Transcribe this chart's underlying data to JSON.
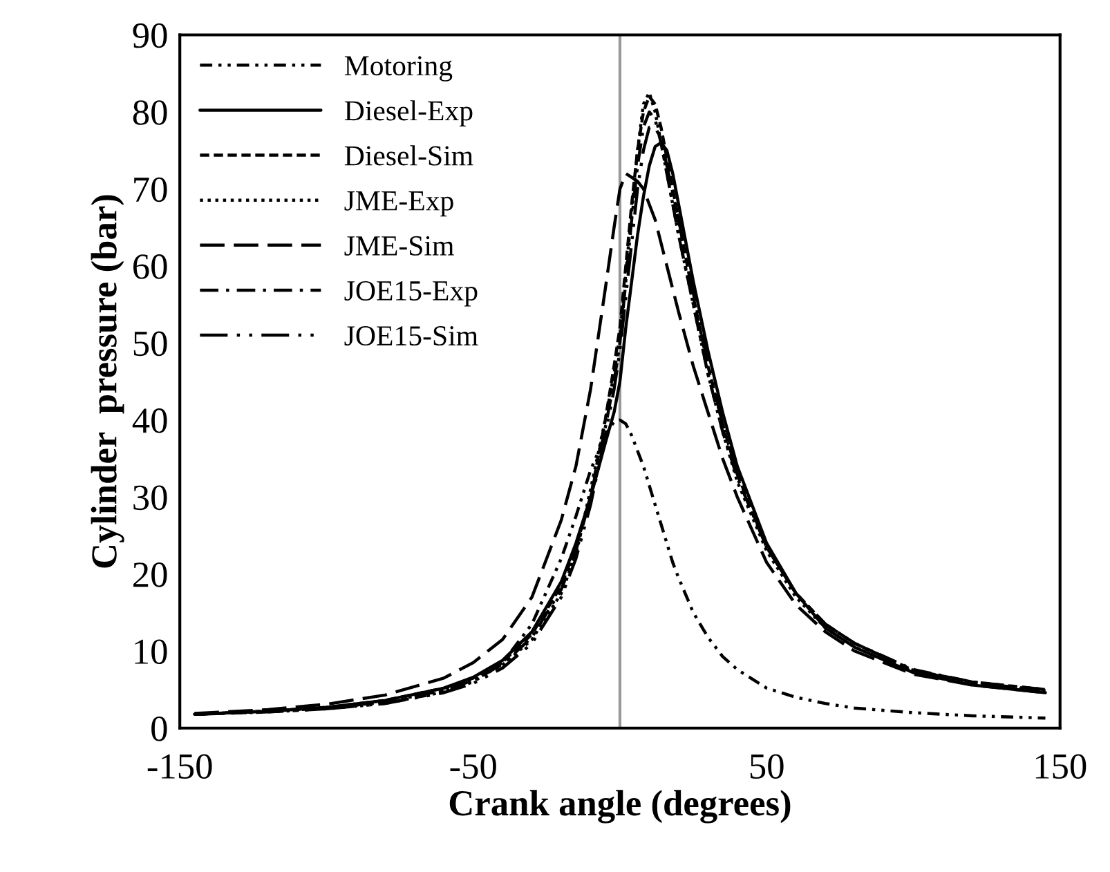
{
  "chart_data": {
    "type": "line",
    "xlabel": "Crank angle (degrees)",
    "ylabel": "Cylinder  pressure (bar)",
    "x": [
      -145,
      -120,
      -100,
      -80,
      -60,
      -50,
      -40,
      -30,
      -20,
      -15,
      -10,
      -5,
      -2,
      0,
      2,
      4,
      6,
      8,
      10,
      12,
      14,
      16,
      18,
      20,
      25,
      30,
      35,
      40,
      50,
      60,
      70,
      80,
      100,
      120,
      145
    ],
    "series": [
      {
        "name": "Motoring",
        "color": "#000000",
        "line_style": "dashdotdot",
        "values": [
          1.8,
          2.1,
          2.5,
          3.2,
          4.7,
          6,
          8.5,
          13.5,
          22,
          27.5,
          33.5,
          38,
          39.8,
          40,
          39.5,
          38,
          36,
          34,
          31.5,
          29,
          26.5,
          24,
          21.5,
          19.5,
          15,
          11.8,
          9.3,
          7.6,
          5.2,
          4,
          3.2,
          2.6,
          2,
          1.6,
          1.3
        ]
      },
      {
        "name": "Diesel-Exp",
        "color": "#000000",
        "line_style": "solid",
        "values": [
          1.8,
          2.2,
          2.7,
          3.6,
          5.2,
          6.6,
          8.8,
          12.5,
          19,
          24,
          30,
          37,
          41,
          45,
          52,
          58,
          64,
          69,
          73,
          75.5,
          76,
          75,
          72,
          68,
          58,
          49,
          41,
          34,
          24,
          17.5,
          13,
          10.5,
          7.2,
          5.6,
          4.6
        ]
      },
      {
        "name": "Diesel-Sim",
        "color": "#000000",
        "line_style": "dashed",
        "values": [
          1.8,
          2.2,
          2.7,
          3.6,
          5.2,
          6.5,
          8.6,
          12.2,
          18.5,
          23.5,
          30,
          40,
          47,
          52,
          60,
          68,
          75,
          80,
          82,
          81,
          78,
          74,
          70,
          66,
          56,
          47,
          39.5,
          33,
          23.5,
          17.5,
          13.5,
          11,
          7.5,
          6,
          5
        ]
      },
      {
        "name": "JME-Exp",
        "color": "#000000",
        "line_style": "dotted",
        "values": [
          1.8,
          2.2,
          2.6,
          3.4,
          4.9,
          6.2,
          8.2,
          11.5,
          17.5,
          22.5,
          31,
          40,
          46,
          51,
          59,
          67,
          75,
          81,
          82.5,
          80,
          76,
          72,
          68,
          64,
          55,
          46,
          38.5,
          32,
          23,
          17,
          13,
          10.5,
          7.3,
          5.8,
          4.8
        ]
      },
      {
        "name": "JME-Sim",
        "color": "#000000",
        "line_style": "longdash",
        "values": [
          1.9,
          2.4,
          3.1,
          4.3,
          6.5,
          8.5,
          11.5,
          17,
          27,
          34,
          44,
          57,
          65,
          70,
          72,
          71.5,
          71,
          70,
          68,
          66,
          63,
          60,
          57,
          54,
          47,
          41,
          35,
          30,
          21.5,
          16,
          12.5,
          10,
          7,
          5.6,
          4.6
        ]
      },
      {
        "name": "JOE15-Exp",
        "color": "#000000",
        "line_style": "dashdot",
        "values": [
          1.8,
          2.2,
          2.6,
          3.4,
          4.9,
          6.2,
          8.3,
          11.8,
          18,
          23,
          30,
          39,
          45,
          50,
          58,
          66,
          73,
          78,
          80,
          79,
          76,
          72,
          68,
          64,
          55,
          46,
          38.5,
          32.5,
          23.5,
          17.5,
          13.5,
          11,
          7.6,
          6,
          5
        ]
      },
      {
        "name": "JOE15-Sim",
        "color": "#000000",
        "line_style": "longdashdotdot",
        "values": [
          1.8,
          2.1,
          2.5,
          3.2,
          4.6,
          5.8,
          7.8,
          11,
          17,
          22,
          29,
          38,
          44,
          49,
          56,
          63,
          70,
          75,
          78,
          78,
          76.5,
          73,
          69.5,
          66,
          56.5,
          47.5,
          39.5,
          33,
          23.5,
          17.5,
          13.5,
          11,
          7.5,
          5.9,
          4.9
        ]
      }
    ],
    "xlim": [
      -150,
      150
    ],
    "xticks": [
      -150,
      -50,
      50,
      150
    ],
    "ylim": [
      0,
      90
    ],
    "yticks": [
      0,
      10,
      20,
      30,
      40,
      50,
      60,
      70,
      80,
      90
    ],
    "ref_lines": [
      {
        "axis": "x",
        "value": 0,
        "color": "#999999",
        "line_style": "solid"
      }
    ],
    "grid": false,
    "legend": "top left"
  }
}
